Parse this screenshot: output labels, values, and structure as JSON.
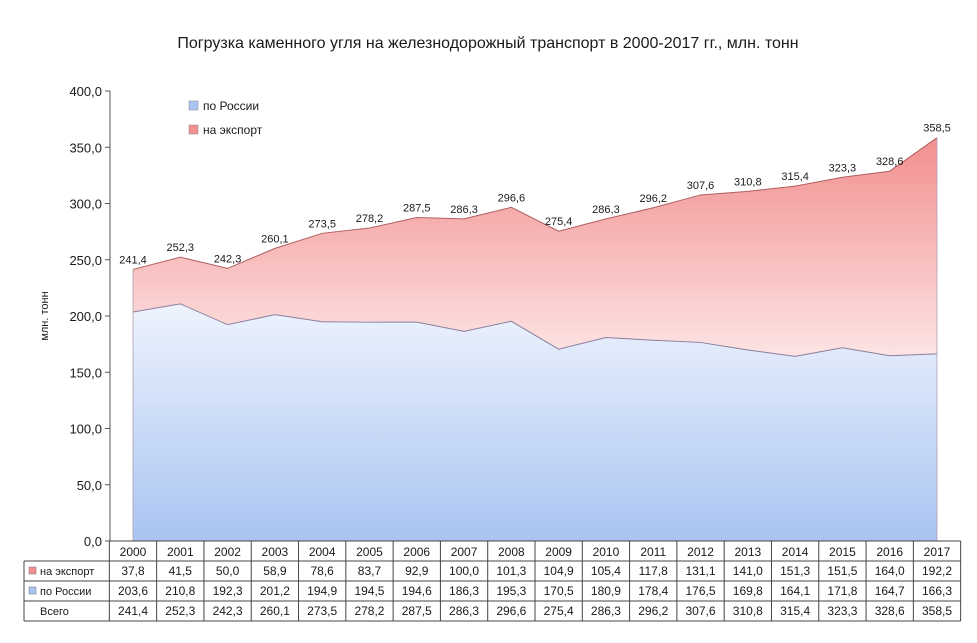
{
  "chart_data": {
    "type": "area",
    "title": "Погрузка каменного угля на железнодорожный транспорт в 2000-2017 гг., млн. тонн",
    "ylabel": "млн. тонн",
    "xlabel": "",
    "ylim": [
      0,
      400
    ],
    "yticks": [
      "0,0",
      "50,0",
      "100,0",
      "150,0",
      "200,0",
      "250,0",
      "300,0",
      "350,0",
      "400,0"
    ],
    "ytick_values": [
      0,
      50,
      100,
      150,
      200,
      250,
      300,
      350,
      400
    ],
    "stacked": true,
    "legend_position": "top-left",
    "grid": false,
    "categories": [
      "2000",
      "2001",
      "2002",
      "2003",
      "2004",
      "2005",
      "2006",
      "2007",
      "2008",
      "2009",
      "2010",
      "2011",
      "2012",
      "2013",
      "2014",
      "2015",
      "2016",
      "2017"
    ],
    "series": [
      {
        "name": "по России",
        "color": "#a9c4f2",
        "values": [
          203.6,
          210.8,
          192.3,
          201.2,
          194.9,
          194.5,
          194.6,
          186.3,
          195.3,
          170.5,
          180.9,
          178.4,
          176.5,
          169.8,
          164.1,
          171.8,
          164.7,
          166.3
        ],
        "labels": [
          "203,6",
          "210,8",
          "192,3",
          "201,2",
          "194,9",
          "194,5",
          "194,6",
          "186,3",
          "195,3",
          "170,5",
          "180,9",
          "178,4",
          "176,5",
          "169,8",
          "164,1",
          "171,8",
          "164,7",
          "166,3"
        ]
      },
      {
        "name": "на экспорт",
        "color": "#f28f8f",
        "values": [
          37.8,
          41.5,
          50.0,
          58.9,
          78.6,
          83.7,
          92.9,
          100.0,
          101.3,
          104.9,
          105.4,
          117.8,
          131.1,
          141.0,
          151.3,
          151.5,
          164.0,
          192.2
        ],
        "labels": [
          "37,8",
          "41,5",
          "50,0",
          "58,9",
          "78,6",
          "83,7",
          "92,9",
          "100,0",
          "101,3",
          "104,9",
          "105,4",
          "117,8",
          "131,1",
          "141,0",
          "151,3",
          "151,5",
          "164,0",
          "192,2"
        ]
      }
    ],
    "totals": {
      "name": "Всего",
      "values": [
        241.4,
        252.3,
        242.3,
        260.1,
        273.5,
        278.2,
        287.5,
        286.3,
        296.6,
        275.4,
        286.3,
        296.2,
        307.6,
        310.8,
        315.4,
        323.3,
        328.6,
        358.5
      ],
      "labels": [
        "241,4",
        "252,3",
        "242,3",
        "260,1",
        "273,5",
        "278,2",
        "287,5",
        "286,3",
        "296,6",
        "275,4",
        "286,3",
        "296,2",
        "307,6",
        "310,8",
        "315,4",
        "323,3",
        "328,6",
        "358,5"
      ]
    },
    "table": {
      "row_order": [
        "на экспорт",
        "по России",
        "Всего"
      ]
    }
  }
}
